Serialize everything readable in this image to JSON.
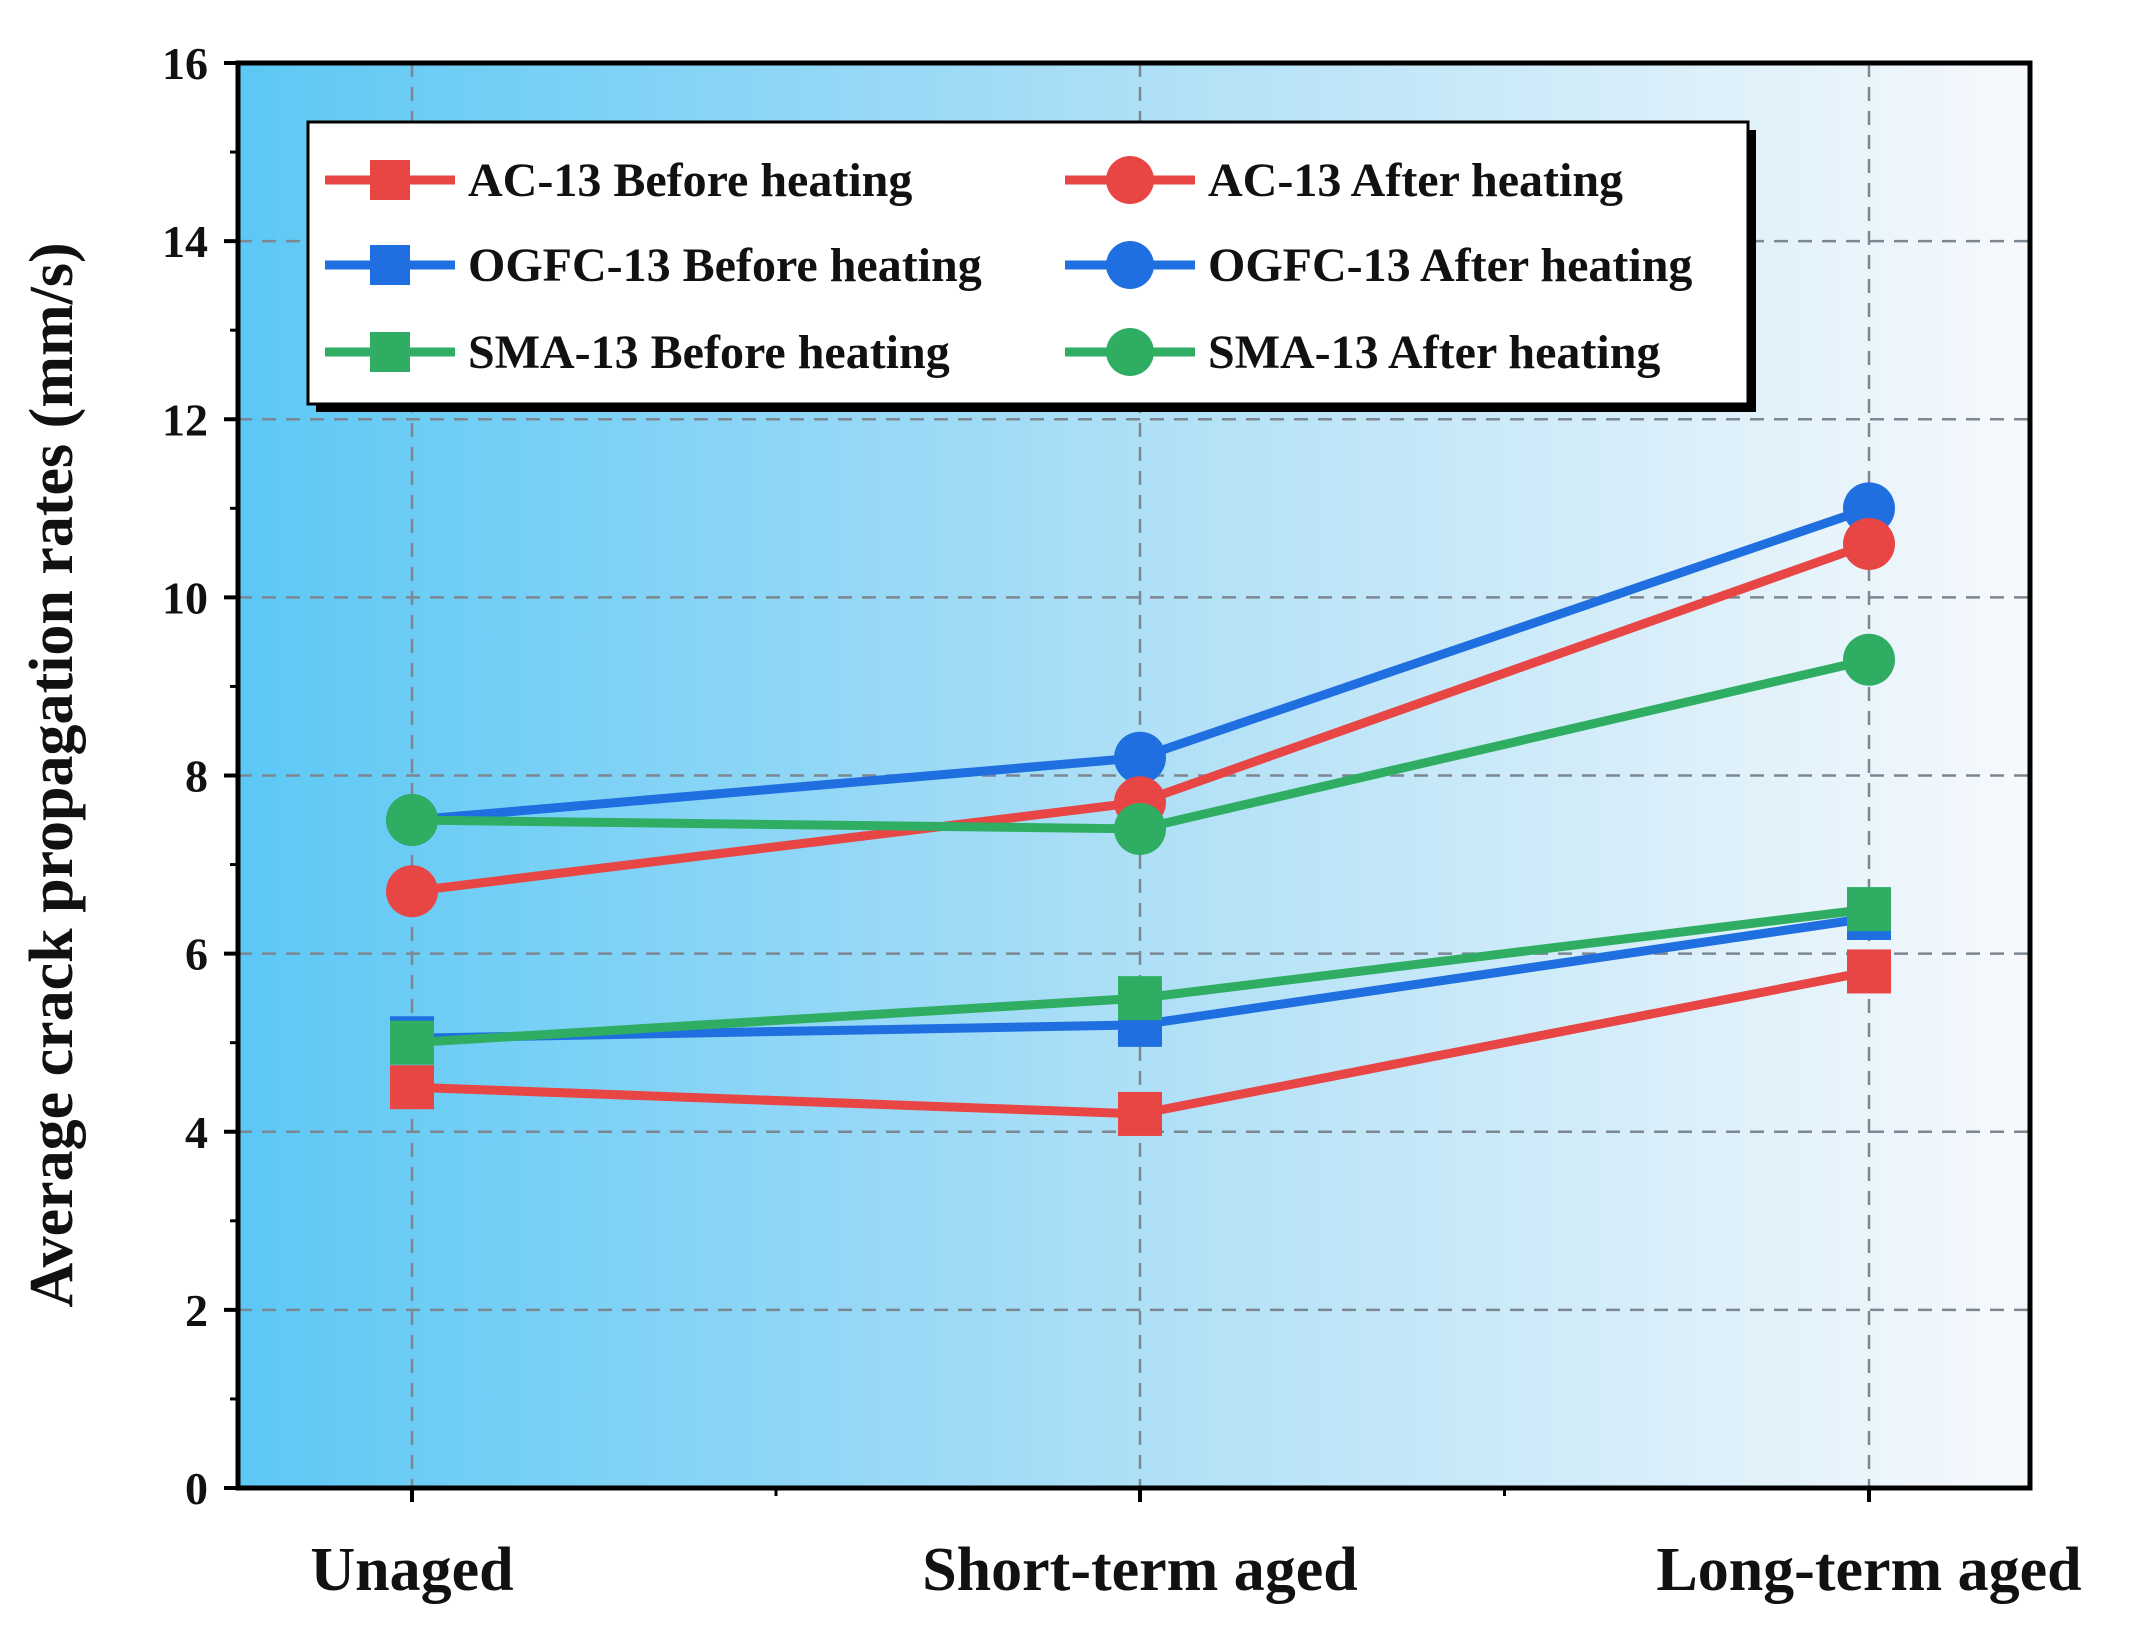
{
  "chart_data": {
    "type": "line",
    "title": "",
    "xlabel": "",
    "ylabel": "Average crack propagation rates (mm/s)",
    "ylim": [
      0,
      16
    ],
    "yticks": [
      0,
      2,
      4,
      6,
      8,
      10,
      12,
      14,
      16
    ],
    "categories": [
      "Unaged",
      "Short-term aged",
      "Long-term aged"
    ],
    "grid": true,
    "legend_position": "top",
    "background": "horizontal gradient from #5cc8f5 to #f7f9fc",
    "series": [
      {
        "name": "AC-13 Before heating",
        "marker": "square",
        "color": "#e84545",
        "values": [
          4.5,
          4.2,
          5.8
        ]
      },
      {
        "name": "AC-13 After heating",
        "marker": "circle",
        "color": "#e84545",
        "values": [
          6.7,
          7.7,
          10.6
        ]
      },
      {
        "name": "OGFC-13 Before heating",
        "marker": "square",
        "color": "#1f6fe0",
        "values": [
          5.05,
          5.2,
          6.4
        ]
      },
      {
        "name": "OGFC-13 After heating",
        "marker": "circle",
        "color": "#1f6fe0",
        "values": [
          7.5,
          8.2,
          11.0
        ]
      },
      {
        "name": "SMA-13 Before heating",
        "marker": "square",
        "color": "#2fae63",
        "values": [
          5.0,
          5.5,
          6.5
        ]
      },
      {
        "name": "SMA-13 After heating",
        "marker": "circle",
        "color": "#2fae63",
        "values": [
          7.5,
          7.4,
          9.3
        ]
      }
    ]
  }
}
